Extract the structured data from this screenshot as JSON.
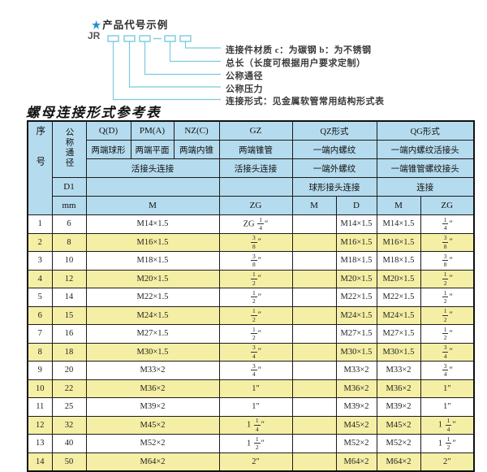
{
  "diagram": {
    "star": "★",
    "heading": "产品代号示例",
    "code": "JR",
    "labels": [
      "连接件材质  c：为碳钢  b：为不锈钢",
      "总长（长度可根据用户要求定制）",
      "公称通径",
      "公称压力",
      "连接形式：见金属软管常用结构形式表"
    ]
  },
  "table_title": "螺母连接形式参考表",
  "table": {
    "header": {
      "seq": "序号",
      "dn": "公称通径",
      "d1": "D1",
      "mm": "mm",
      "q": "Q(D)",
      "q_sub": "两端球形",
      "pm": "PM(A)",
      "pm_sub": "两端平面",
      "nz": "NZ(C)",
      "nz_sub": "两端内锥",
      "gz": "GZ",
      "gz_sub": "两端锥管",
      "qz": "QZ形式",
      "qz_sub1": "一端内螺纹",
      "qz_sub2": "一端外螺纹",
      "qg": "QG形式",
      "qg_sub1": "一端内螺纹活接头",
      "qg_sub2": "一端锥管螺纹接头",
      "union3": "活接头连接",
      "gz_union": "活接头连接",
      "qz_conn": "球形接头连接",
      "qg_conn": "连接",
      "m": "M",
      "zg": "ZG",
      "qz_m": "M",
      "qz_d": "D",
      "qg_m": "M",
      "qg_zg": "ZG"
    },
    "rows": [
      {
        "no": "1",
        "dn": "6",
        "m": "M14×1.5",
        "gz": "ZG 1/4″",
        "qz_m": "",
        "qz_d": "M14×1.5",
        "qg_m": "M14×1.5",
        "qg_zg": "1/4″"
      },
      {
        "no": "2",
        "dn": "8",
        "m": "M16×1.5",
        "gz": "3/8″",
        "qz_m": "",
        "qz_d": "M16×1.5",
        "qg_m": "M16×1.5",
        "qg_zg": "3/8″"
      },
      {
        "no": "3",
        "dn": "10",
        "m": "M18×1.5",
        "gz": "3/8″",
        "qz_m": "",
        "qz_d": "M18×1.5",
        "qg_m": "M18×1.5",
        "qg_zg": "3/8″"
      },
      {
        "no": "4",
        "dn": "12",
        "m": "M20×1.5",
        "gz": "1/2″",
        "qz_m": "",
        "qz_d": "M20×1.5",
        "qg_m": "M20×1.5",
        "qg_zg": "1/2″"
      },
      {
        "no": "5",
        "dn": "14",
        "m": "M22×1.5",
        "gz": "1/2″",
        "qz_m": "",
        "qz_d": "M22×1.5",
        "qg_m": "M22×1.5",
        "qg_zg": "1/2″"
      },
      {
        "no": "6",
        "dn": "15",
        "m": "M24×1.5",
        "gz": "1/2″",
        "qz_m": "",
        "qz_d": "M24×1.5",
        "qg_m": "M24×1.5",
        "qg_zg": "1/2″"
      },
      {
        "no": "7",
        "dn": "16",
        "m": "M27×1.5",
        "gz": "1/2″",
        "qz_m": "",
        "qz_d": "M27×1.5",
        "qg_m": "M27×1.5",
        "qg_zg": "1/2″"
      },
      {
        "no": "8",
        "dn": "18",
        "m": "M30×1.5",
        "gz": "3/4″",
        "qz_m": "",
        "qz_d": "M30×1.5",
        "qg_m": "M30×1.5",
        "qg_zg": "3/4″"
      },
      {
        "no": "9",
        "dn": "20",
        "m": "M33×2",
        "gz": "3/4″",
        "qz_m": "",
        "qz_d": "M33×2",
        "qg_m": "M33×2",
        "qg_zg": "3/4″"
      },
      {
        "no": "10",
        "dn": "22",
        "m": "M36×2",
        "gz": "1″",
        "qz_m": "",
        "qz_d": "M36×2",
        "qg_m": "M36×2",
        "qg_zg": "1″"
      },
      {
        "no": "11",
        "dn": "25",
        "m": "M39×2",
        "gz": "1″",
        "qz_m": "",
        "qz_d": "M39×2",
        "qg_m": "M39×2",
        "qg_zg": "1″"
      },
      {
        "no": "12",
        "dn": "32",
        "m": "M45×2",
        "gz": "1 1/4″",
        "qz_m": "",
        "qz_d": "M45×2",
        "qg_m": "M45×2",
        "qg_zg": "1 1/4″"
      },
      {
        "no": "13",
        "dn": "40",
        "m": "M52×2",
        "gz": "1 1/2″",
        "qz_m": "",
        "qz_d": "M52×2",
        "qg_m": "M52×2",
        "qg_zg": "1 1/2″"
      },
      {
        "no": "14",
        "dn": "50",
        "m": "M64×2",
        "gz": "2″",
        "qz_m": "",
        "qz_d": "M64×2",
        "qg_m": "M64×2",
        "qg_zg": "2″"
      }
    ]
  },
  "colors": {
    "header_bg": "#b5dbee",
    "row_alt_bg": "#f5efa5",
    "diagram_line": "#79cbde",
    "star_blue": "#2191cc",
    "grid_border": "#1c1c1c"
  }
}
